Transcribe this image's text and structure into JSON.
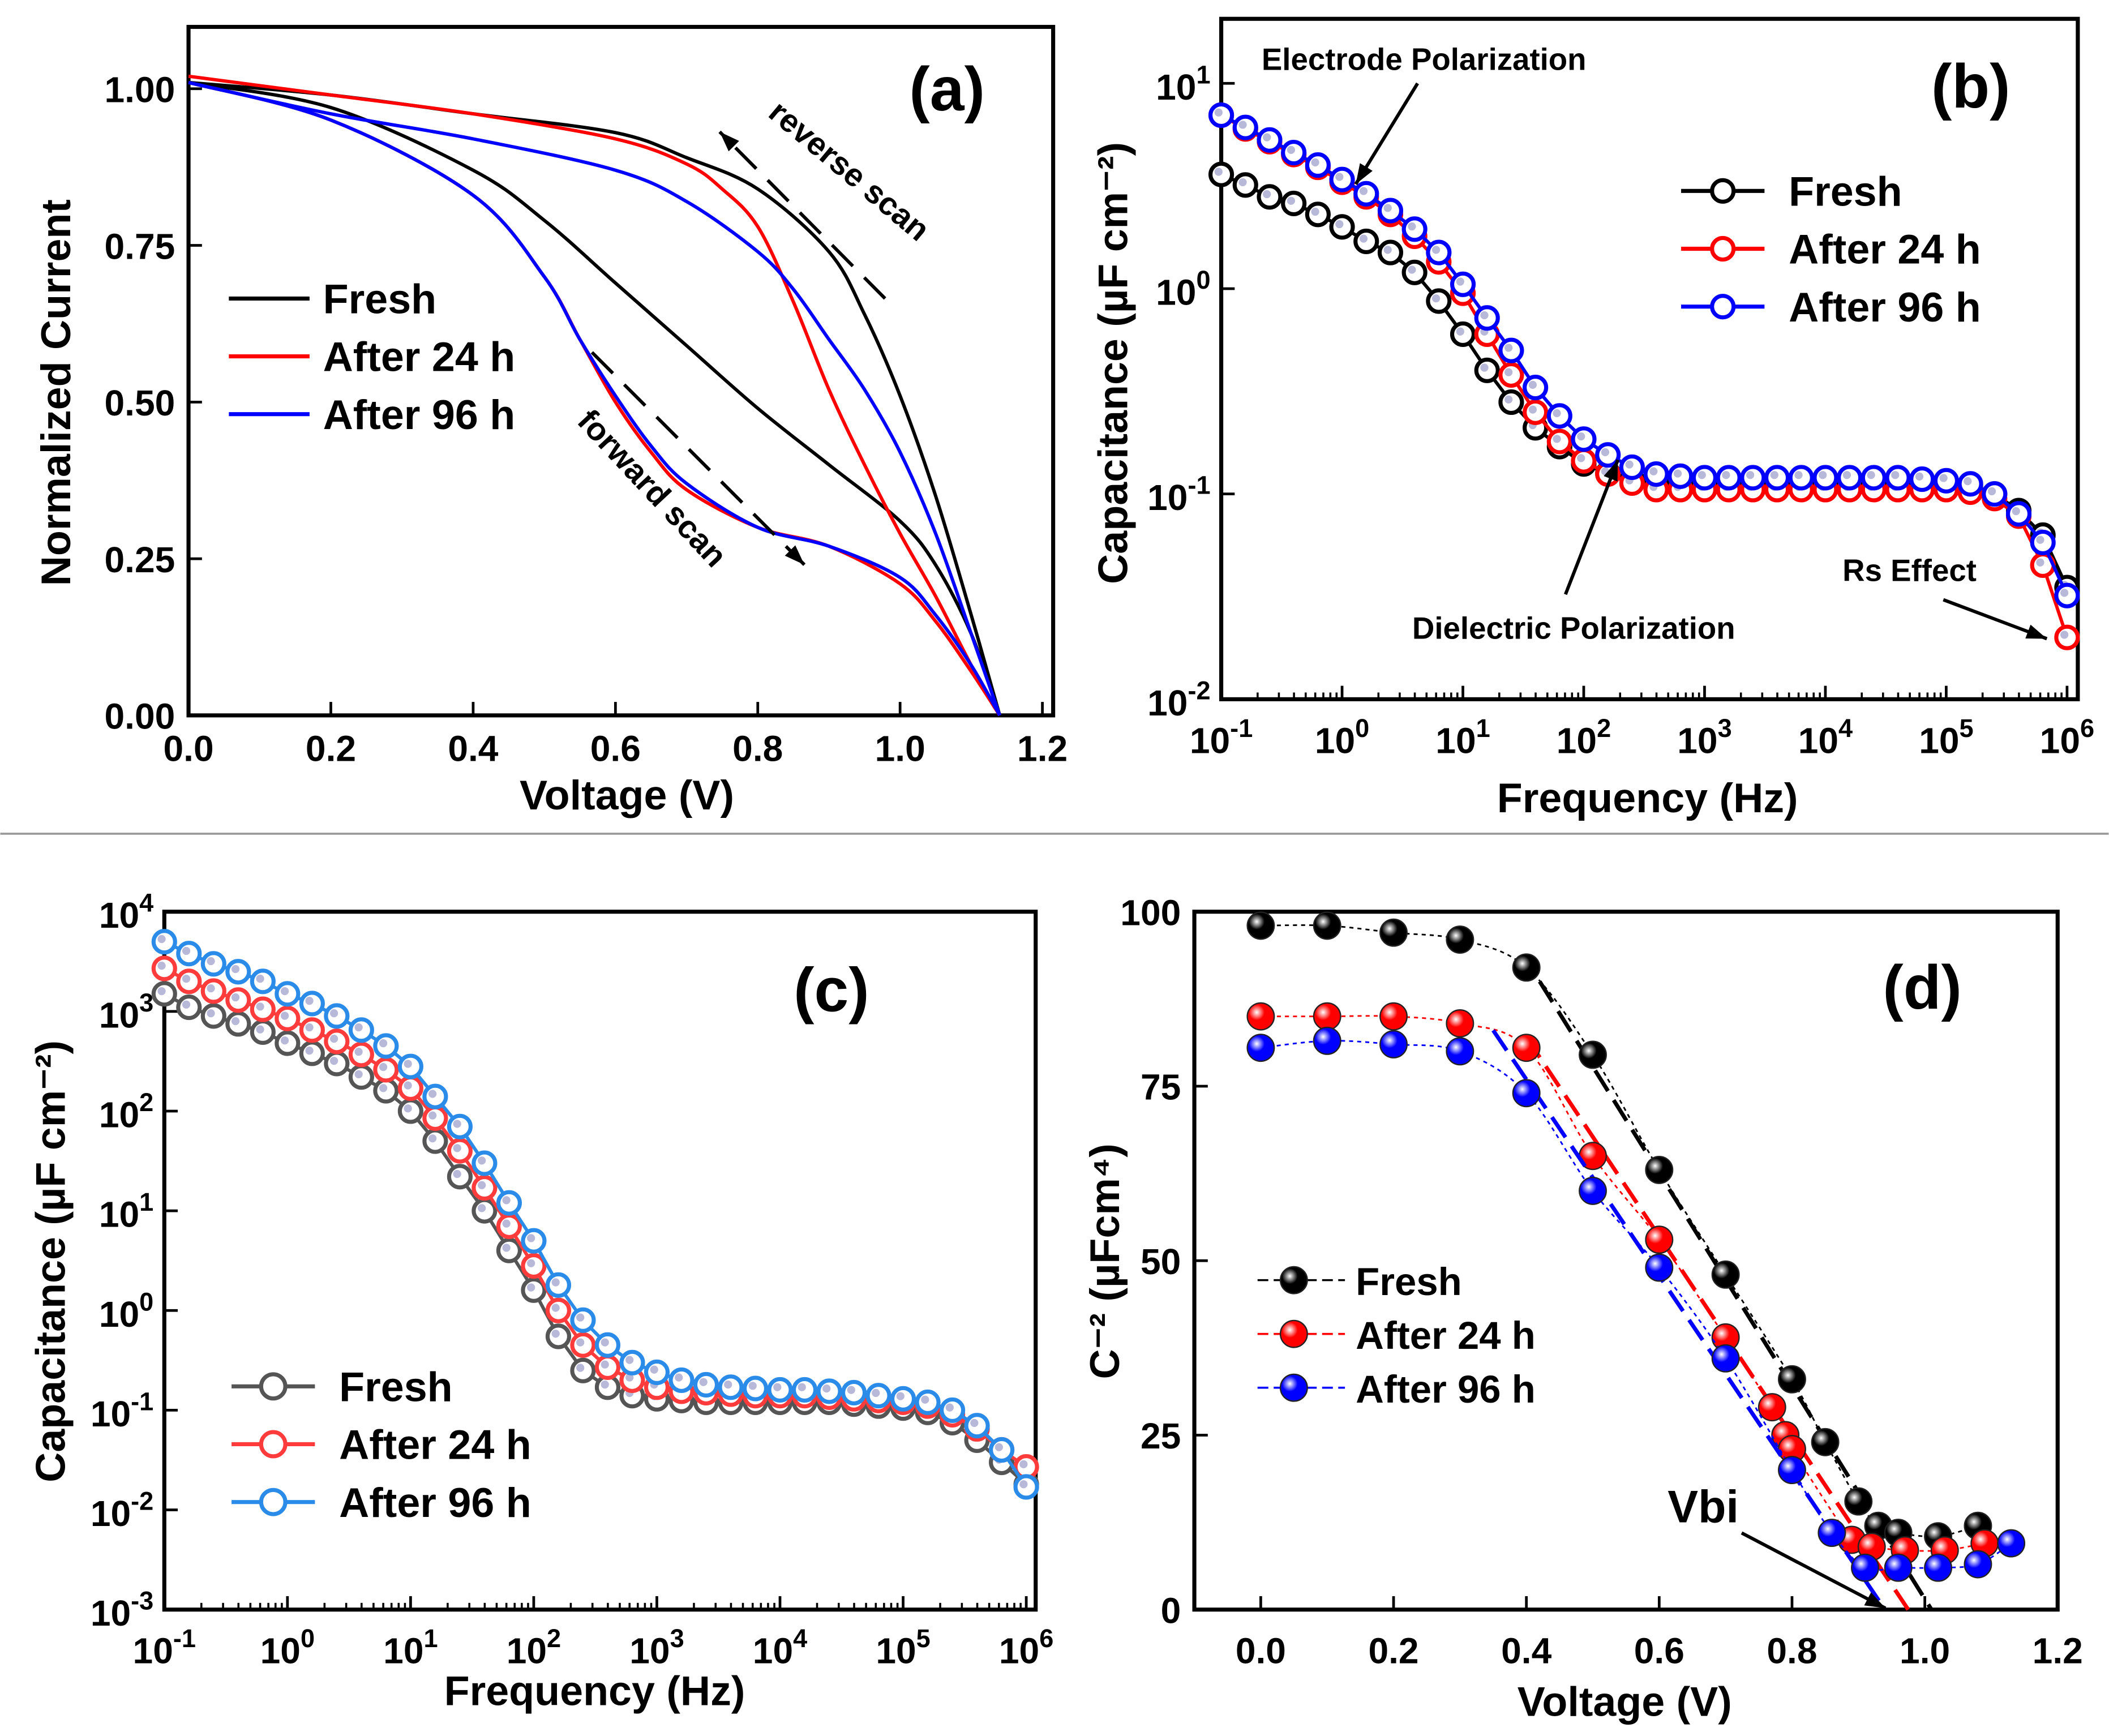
{
  "chart_data": [
    {
      "panel": "(a)",
      "type": "line",
      "xlabel": "Voltage (V)",
      "ylabel": "Normalized Current",
      "xlim": [
        0,
        1.2
      ],
      "ylim": [
        0,
        1.1
      ],
      "xticks": [
        "0.0",
        "0.2",
        "0.4",
        "0.6",
        "0.8",
        "1.0",
        "1.2"
      ],
      "yticks": [
        "0.00",
        "0.25",
        "0.50",
        "0.75",
        "1.00"
      ],
      "legend_position": "center-left",
      "annotations": [
        "reverse scan",
        "forward scan"
      ],
      "series": [
        {
          "name": "Fresh",
          "color": "#000000",
          "scan": "forward",
          "x": [
            0,
            0.2,
            0.4,
            0.5,
            0.6,
            0.7,
            0.8,
            0.9,
            1.0,
            1.05,
            1.1,
            1.14
          ],
          "y": [
            1.01,
            0.97,
            0.87,
            0.79,
            0.69,
            0.59,
            0.49,
            0.4,
            0.31,
            0.24,
            0.13,
            0
          ]
        },
        {
          "name": "Fresh",
          "color": "#000000",
          "scan": "reverse",
          "x": [
            0,
            0.2,
            0.4,
            0.6,
            0.7,
            0.8,
            0.9,
            0.95,
            1.0,
            1.05,
            1.1,
            1.14
          ],
          "y": [
            1.01,
            0.99,
            0.96,
            0.93,
            0.89,
            0.84,
            0.74,
            0.64,
            0.51,
            0.35,
            0.16,
            0
          ]
        },
        {
          "name": "After 24 h",
          "color": "#ff0000",
          "scan": "forward",
          "x": [
            0,
            0.2,
            0.4,
            0.5,
            0.55,
            0.6,
            0.65,
            0.7,
            0.8,
            0.9,
            1.0,
            1.05,
            1.1,
            1.14
          ],
          "y": [
            1.01,
            0.95,
            0.83,
            0.7,
            0.6,
            0.5,
            0.42,
            0.36,
            0.3,
            0.27,
            0.21,
            0.15,
            0.07,
            0
          ]
        },
        {
          "name": "After 24 h",
          "color": "#ff0000",
          "scan": "reverse",
          "x": [
            0,
            0.2,
            0.4,
            0.6,
            0.7,
            0.75,
            0.8,
            0.85,
            0.9,
            0.95,
            1.0,
            1.05,
            1.1,
            1.14
          ],
          "y": [
            1.02,
            0.99,
            0.96,
            0.92,
            0.88,
            0.84,
            0.78,
            0.66,
            0.52,
            0.4,
            0.29,
            0.19,
            0.08,
            0
          ]
        },
        {
          "name": "After 96 h",
          "color": "#0000ff",
          "scan": "forward",
          "x": [
            0,
            0.2,
            0.4,
            0.5,
            0.55,
            0.6,
            0.65,
            0.7,
            0.8,
            0.9,
            1.0,
            1.05,
            1.1,
            1.14
          ],
          "y": [
            1.01,
            0.95,
            0.83,
            0.7,
            0.6,
            0.51,
            0.43,
            0.37,
            0.3,
            0.27,
            0.22,
            0.16,
            0.08,
            0
          ]
        },
        {
          "name": "After 96 h",
          "color": "#0000ff",
          "scan": "reverse",
          "x": [
            0,
            0.2,
            0.4,
            0.6,
            0.7,
            0.8,
            0.85,
            0.9,
            0.95,
            1.0,
            1.05,
            1.1,
            1.14
          ],
          "y": [
            1.01,
            0.96,
            0.92,
            0.87,
            0.82,
            0.74,
            0.68,
            0.6,
            0.52,
            0.42,
            0.29,
            0.13,
            0
          ]
        }
      ]
    },
    {
      "panel": "(b)",
      "type": "line",
      "xscale": "log",
      "yscale": "log",
      "xlabel": "Frequency (Hz)",
      "ylabel": "Capacitance (µF cm⁻²)",
      "xlim": [
        0.1,
        1000000
      ],
      "ylim": [
        0.01,
        10
      ],
      "xtick_exponents": [
        "-1",
        "0",
        "1",
        "2",
        "3",
        "4",
        "5",
        "6"
      ],
      "ytick_exponents": [
        "-2",
        "-1",
        "0",
        "1"
      ],
      "legend_position": "top-right",
      "annotations": [
        "Electrode Polarization",
        "Dielectric Polarization",
        "Rs Effect"
      ],
      "log10_frequency": [
        -1,
        -0.8,
        -0.6,
        -0.4,
        -0.2,
        0,
        0.2,
        0.4,
        0.6,
        0.8,
        1,
        1.2,
        1.4,
        1.6,
        1.8,
        2,
        2.2,
        2.4,
        2.6,
        2.8,
        3,
        3.2,
        3.4,
        3.6,
        3.8,
        4,
        4.2,
        4.4,
        4.6,
        4.8,
        5,
        5.2,
        5.4,
        5.6,
        5.8,
        6
      ],
      "series": [
        {
          "name": "Fresh",
          "color": "#000000",
          "values": [
            3.6,
            3.2,
            2.8,
            2.6,
            2.3,
            2.0,
            1.7,
            1.5,
            1.2,
            0.87,
            0.6,
            0.4,
            0.28,
            0.21,
            0.17,
            0.14,
            0.126,
            0.117,
            0.113,
            0.113,
            0.113,
            0.113,
            0.113,
            0.113,
            0.113,
            0.113,
            0.113,
            0.113,
            0.113,
            0.113,
            0.113,
            0.11,
            0.1,
            0.083,
            0.063,
            0.035
          ]
        },
        {
          "name": "After 24 h",
          "color": "#ff0000",
          "values": [
            7.0,
            6.0,
            5.2,
            4.5,
            3.9,
            3.3,
            2.8,
            2.3,
            1.8,
            1.35,
            0.95,
            0.6,
            0.38,
            0.25,
            0.18,
            0.145,
            0.125,
            0.113,
            0.105,
            0.105,
            0.105,
            0.105,
            0.105,
            0.105,
            0.105,
            0.105,
            0.105,
            0.105,
            0.105,
            0.105,
            0.105,
            0.102,
            0.095,
            0.078,
            0.045,
            0.02
          ]
        },
        {
          "name": "After 96 h",
          "color": "#0000ff",
          "values": [
            7.0,
            6.1,
            5.3,
            4.6,
            4.0,
            3.4,
            2.9,
            2.4,
            1.95,
            1.5,
            1.05,
            0.72,
            0.5,
            0.33,
            0.24,
            0.185,
            0.155,
            0.135,
            0.125,
            0.122,
            0.12,
            0.12,
            0.12,
            0.12,
            0.12,
            0.12,
            0.12,
            0.12,
            0.12,
            0.118,
            0.116,
            0.112,
            0.1,
            0.08,
            0.058,
            0.032
          ]
        }
      ]
    },
    {
      "panel": "(c)",
      "type": "line",
      "xscale": "log",
      "yscale": "log",
      "xlabel": "Frequency (Hz)",
      "ylabel": "Capacitance (µF cm⁻²)",
      "xlim": [
        0.1,
        1000000
      ],
      "ylim": [
        0.001,
        10000
      ],
      "xtick_exponents": [
        "-1",
        "0",
        "1",
        "2",
        "3",
        "4",
        "5",
        "6"
      ],
      "ytick_exponents": [
        "-3",
        "-2",
        "-1",
        "0",
        "1",
        "2",
        "3",
        "4"
      ],
      "legend_position": "bottom-left",
      "log10_frequency": [
        -1,
        -0.8,
        -0.6,
        -0.4,
        -0.2,
        0,
        0.2,
        0.4,
        0.6,
        0.8,
        1,
        1.2,
        1.4,
        1.6,
        1.8,
        2,
        2.2,
        2.4,
        2.6,
        2.8,
        3,
        3.2,
        3.4,
        3.6,
        3.8,
        4,
        4.2,
        4.4,
        4.6,
        4.8,
        5,
        5.2,
        5.4,
        5.6,
        5.8,
        6
      ],
      "series": [
        {
          "name": "Fresh",
          "color": "#555555",
          "values": [
            1500,
            1100,
            900,
            750,
            620,
            480,
            380,
            300,
            220,
            160,
            100,
            50,
            22,
            10,
            4,
            1.6,
            0.55,
            0.25,
            0.17,
            0.14,
            0.13,
            0.125,
            0.12,
            0.12,
            0.12,
            0.12,
            0.12,
            0.12,
            0.115,
            0.11,
            0.105,
            0.095,
            0.075,
            0.05,
            0.03,
            0.018
          ]
        },
        {
          "name": "After 24 h",
          "color": "#ff3b3b",
          "values": [
            2700,
            2000,
            1600,
            1300,
            1050,
            850,
            650,
            500,
            370,
            260,
            170,
            85,
            40,
            17,
            7,
            2.8,
            1.0,
            0.45,
            0.27,
            0.2,
            0.17,
            0.155,
            0.15,
            0.145,
            0.14,
            0.14,
            0.14,
            0.135,
            0.13,
            0.125,
            0.12,
            0.11,
            0.09,
            0.065,
            0.04,
            0.027
          ]
        },
        {
          "name": "After 96 h",
          "color": "#2a8be8",
          "values": [
            5000,
            3800,
            3000,
            2500,
            2000,
            1500,
            1200,
            900,
            650,
            450,
            280,
            140,
            70,
            30,
            12,
            5,
            1.8,
            0.8,
            0.45,
            0.3,
            0.24,
            0.2,
            0.18,
            0.17,
            0.165,
            0.16,
            0.16,
            0.155,
            0.15,
            0.14,
            0.13,
            0.12,
            0.1,
            0.07,
            0.04,
            0.017
          ]
        }
      ]
    },
    {
      "panel": "(d)",
      "type": "scatter",
      "xlabel": "Voltage (V)",
      "ylabel": "C⁻² (µFcm⁴)",
      "xlim": [
        -0.1,
        1.2
      ],
      "ylim": [
        0,
        100
      ],
      "xticks": [
        "0.0",
        "0.2",
        "0.4",
        "0.6",
        "0.8",
        "1.0",
        "1.2"
      ],
      "yticks": [
        "0",
        "25",
        "50",
        "75",
        "100"
      ],
      "legend_position": "center-left",
      "annotations": [
        "Vbi"
      ],
      "series": [
        {
          "name": "Fresh",
          "color": "#000000",
          "x": [
            0,
            0.1,
            0.2,
            0.3,
            0.4,
            0.5,
            0.6,
            0.7,
            0.8,
            0.85,
            0.9,
            0.93,
            0.96,
            1.02,
            1.08
          ],
          "y": [
            98,
            98,
            97,
            96,
            92,
            79.5,
            63,
            48,
            33,
            24,
            15.5,
            12,
            11,
            10.5,
            12
          ],
          "fit": {
            "x": [
              0.42,
              1.01
            ],
            "y": [
              90,
              0
            ]
          }
        },
        {
          "name": "After 24 h",
          "color": "#ff0000",
          "x": [
            0,
            0.1,
            0.2,
            0.3,
            0.4,
            0.5,
            0.6,
            0.7,
            0.77,
            0.79,
            0.8,
            0.89,
            0.92,
            0.97,
            1.03,
            1.09
          ],
          "y": [
            85,
            85,
            85,
            84,
            80.5,
            65,
            53,
            39,
            29,
            25,
            23,
            10,
            9,
            8.5,
            8.5,
            9.5
          ],
          "fit": {
            "x": [
              0.4,
              0.975
            ],
            "y": [
              82,
              0
            ]
          }
        },
        {
          "name": "After 96 h",
          "color": "#0000ff",
          "x": [
            0,
            0.1,
            0.2,
            0.3,
            0.4,
            0.5,
            0.6,
            0.7,
            0.8,
            0.86,
            0.91,
            0.96,
            1.02,
            1.08,
            1.13
          ],
          "y": [
            80.5,
            81.5,
            81,
            80,
            74,
            60,
            49,
            36,
            20,
            11,
            6,
            6,
            6,
            6.5,
            9.5
          ],
          "fit": {
            "x": [
              0.35,
              0.94
            ],
            "y": [
              83,
              0
            ]
          }
        }
      ]
    }
  ]
}
